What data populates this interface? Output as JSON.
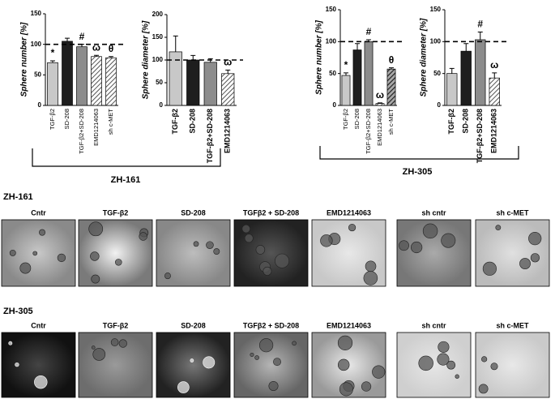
{
  "chart_data": [
    {
      "type": "bar",
      "y_label": "Sphere number [%]",
      "categories": [
        "TGF-β2",
        "SD-208",
        "TGF-β2+SD-208",
        "EMD1214063",
        "sh c-MET"
      ],
      "values": [
        70,
        105,
        96,
        80,
        78
      ],
      "errors": [
        3,
        5,
        4,
        2,
        2
      ],
      "colors": [
        "#c8c8c8",
        "#1e1e1e",
        "#8c8c8c",
        "#cfcfcf",
        "#cfcfcf"
      ],
      "hatched": [
        false,
        false,
        false,
        true,
        true
      ],
      "annotations": [
        "*",
        null,
        "#",
        "ω",
        "θ"
      ],
      "reference_line": 100,
      "ylim": [
        0,
        150
      ],
      "yticks": [
        0,
        50,
        100,
        150
      ]
    },
    {
      "type": "bar",
      "y_label": "Sphere diameter [%]",
      "categories": [
        "TGF-β2",
        "SD-208",
        "TGF-β2+SD-208",
        "EMD1214063"
      ],
      "values": [
        118,
        100,
        95,
        70
      ],
      "errors": [
        35,
        10,
        8,
        8
      ],
      "colors": [
        "#c8c8c8",
        "#1e1e1e",
        "#8c8c8c",
        "#cfcfcf"
      ],
      "hatched": [
        false,
        false,
        false,
        true
      ],
      "annotations": [
        null,
        null,
        null,
        "ω"
      ],
      "reference_line": 100,
      "ylim": [
        0,
        200
      ],
      "yticks": [
        0,
        50,
        100,
        150,
        200
      ]
    },
    {
      "type": "bar",
      "y_label": "Sphere number [%]",
      "categories": [
        "TGF-β2",
        "SD-208",
        "TGF-β2+SD-208",
        "EMD1214063",
        "sh c-MET"
      ],
      "values": [
        47,
        87,
        100,
        3,
        57
      ],
      "errors": [
        4,
        10,
        3,
        1,
        2
      ],
      "colors": [
        "#c8c8c8",
        "#1e1e1e",
        "#8c8c8c",
        "#cfcfcf",
        "#333333"
      ],
      "hatched": [
        false,
        false,
        false,
        true,
        true
      ],
      "annotations": [
        "*",
        null,
        "#",
        "ω",
        "θ"
      ],
      "reference_line": 100,
      "ylim": [
        0,
        150
      ],
      "yticks": [
        0,
        50,
        100,
        150
      ]
    },
    {
      "type": "bar",
      "y_label": "Sphere diameter [%]",
      "categories": [
        "TGF-β2",
        "SD-208",
        "TGF-β2+SD-208",
        "EMD1214063"
      ],
      "values": [
        50,
        85,
        103,
        43
      ],
      "errors": [
        8,
        12,
        12,
        8
      ],
      "colors": [
        "#c8c8c8",
        "#1e1e1e",
        "#8c8c8c",
        "#cfcfcf"
      ],
      "hatched": [
        false,
        false,
        false,
        true
      ],
      "annotations": [
        null,
        null,
        "#",
        "ω"
      ],
      "reference_line": 100,
      "ylim": [
        0,
        150
      ],
      "yticks": [
        0,
        50,
        100,
        150
      ]
    }
  ],
  "brackets": [
    {
      "label": "ZH-161"
    },
    {
      "label": "ZH-305"
    }
  ],
  "image_rows": [
    {
      "label": "ZH-161",
      "panels": [
        "Cntr",
        "TGF-β2",
        "SD-208",
        "TGFβ2 + SD-208",
        "EMD1214063",
        "sh cntr",
        "sh c-MET"
      ]
    },
    {
      "label": "ZH-305",
      "panels": [
        "Cntr",
        "TGF-β2",
        "SD-208",
        "TGFβ2 + SD-208",
        "EMD1214063",
        "sh cntr",
        "sh c-MET"
      ]
    }
  ]
}
